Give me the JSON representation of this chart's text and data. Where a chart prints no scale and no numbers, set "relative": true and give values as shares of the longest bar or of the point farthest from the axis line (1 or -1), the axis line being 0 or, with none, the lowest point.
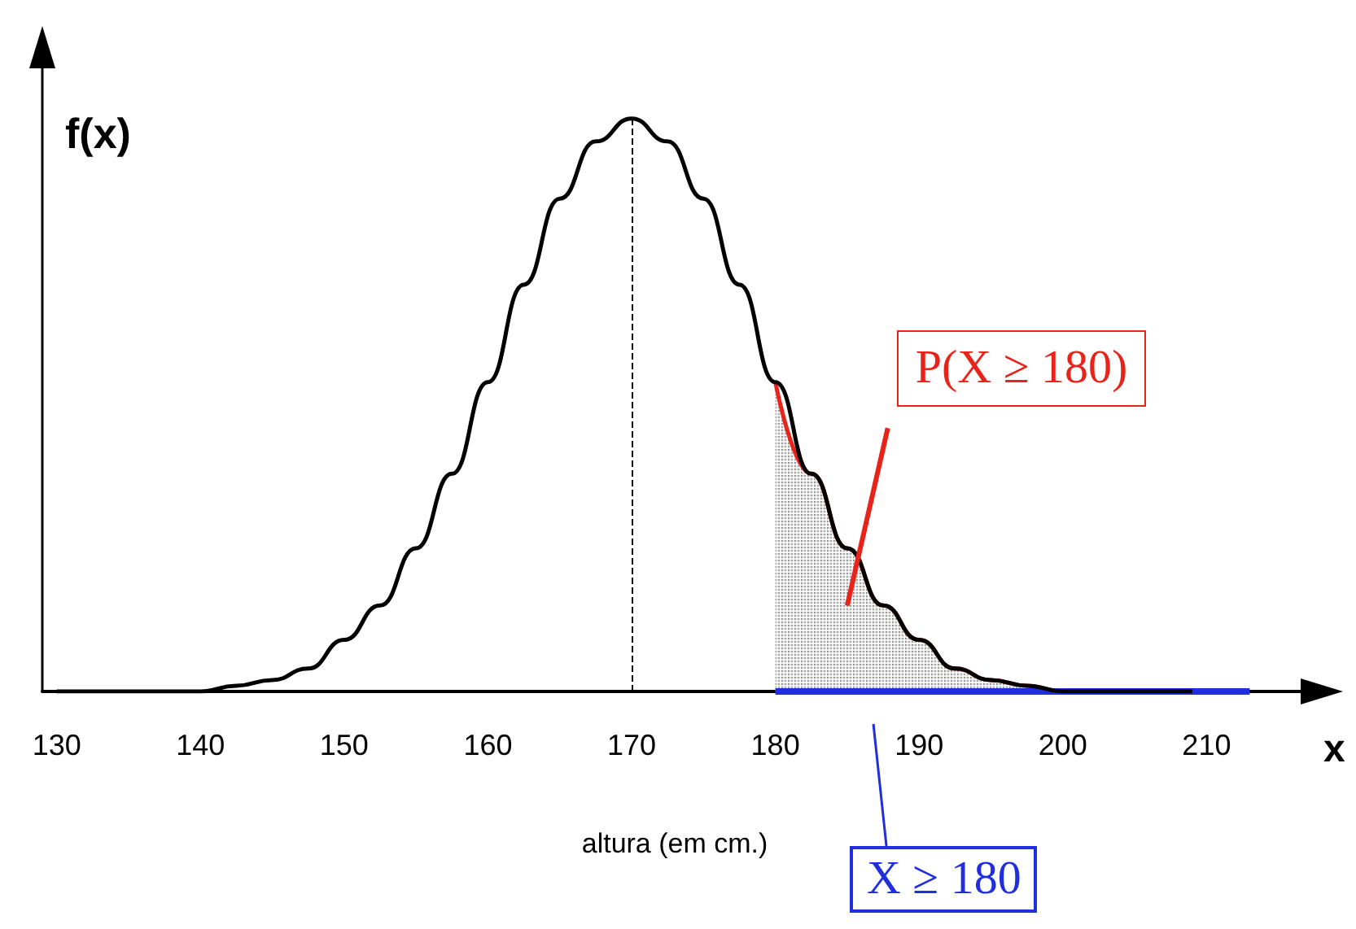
{
  "chart_data": {
    "type": "line",
    "relative": true,
    "xlabel": "altura (em cm.)",
    "ylabel": "f(x)",
    "xlim": [
      129,
      217
    ],
    "xticks": [
      130,
      140,
      150,
      160,
      170,
      180,
      190,
      200,
      210
    ],
    "x": [
      130,
      132.5,
      135,
      137.5,
      140,
      142.5,
      145,
      147.5,
      150,
      152.5,
      155,
      157.5,
      160,
      162.5,
      165,
      167.5,
      170,
      172.5,
      175,
      177.5,
      180,
      182.5,
      185,
      187.5,
      190,
      192.5,
      195,
      197.5,
      200,
      202.5,
      205,
      207.5,
      209
    ],
    "series": [
      {
        "color": "#000000",
        "values": [
          0,
          0,
          0,
          0,
          0,
          0.01,
          0.02,
          0.04,
          0.09,
          0.15,
          0.25,
          0.38,
          0.54,
          0.71,
          0.86,
          0.96,
          1,
          0.96,
          0.86,
          0.71,
          0.54,
          0.38,
          0.25,
          0.15,
          0.09,
          0.04,
          0.02,
          0.01,
          0,
          0,
          0,
          0,
          0
        ]
      },
      {
        "type": "area",
        "color": "#e8231a",
        "x": [
          180,
          182.5,
          185,
          187.5,
          190,
          192.5,
          195,
          197.5,
          200,
          202.5,
          205,
          207.5
        ],
        "values": [
          0.54,
          0.38,
          0.25,
          0.15,
          0.09,
          0.04,
          0.02,
          0.01,
          0,
          0,
          0,
          0
        ]
      },
      {
        "color": "#1f2fe0",
        "x": [
          180,
          213
        ],
        "values": [
          0,
          0
        ]
      }
    ],
    "ref_lines": [
      {
        "axis": "x",
        "value": 170,
        "color": "#000000",
        "line_style": "dashed"
      }
    ],
    "annotations": [
      "x",
      "P(X ≥ 180)",
      "X ≥ 180"
    ],
    "grid": false,
    "marker": "none"
  }
}
